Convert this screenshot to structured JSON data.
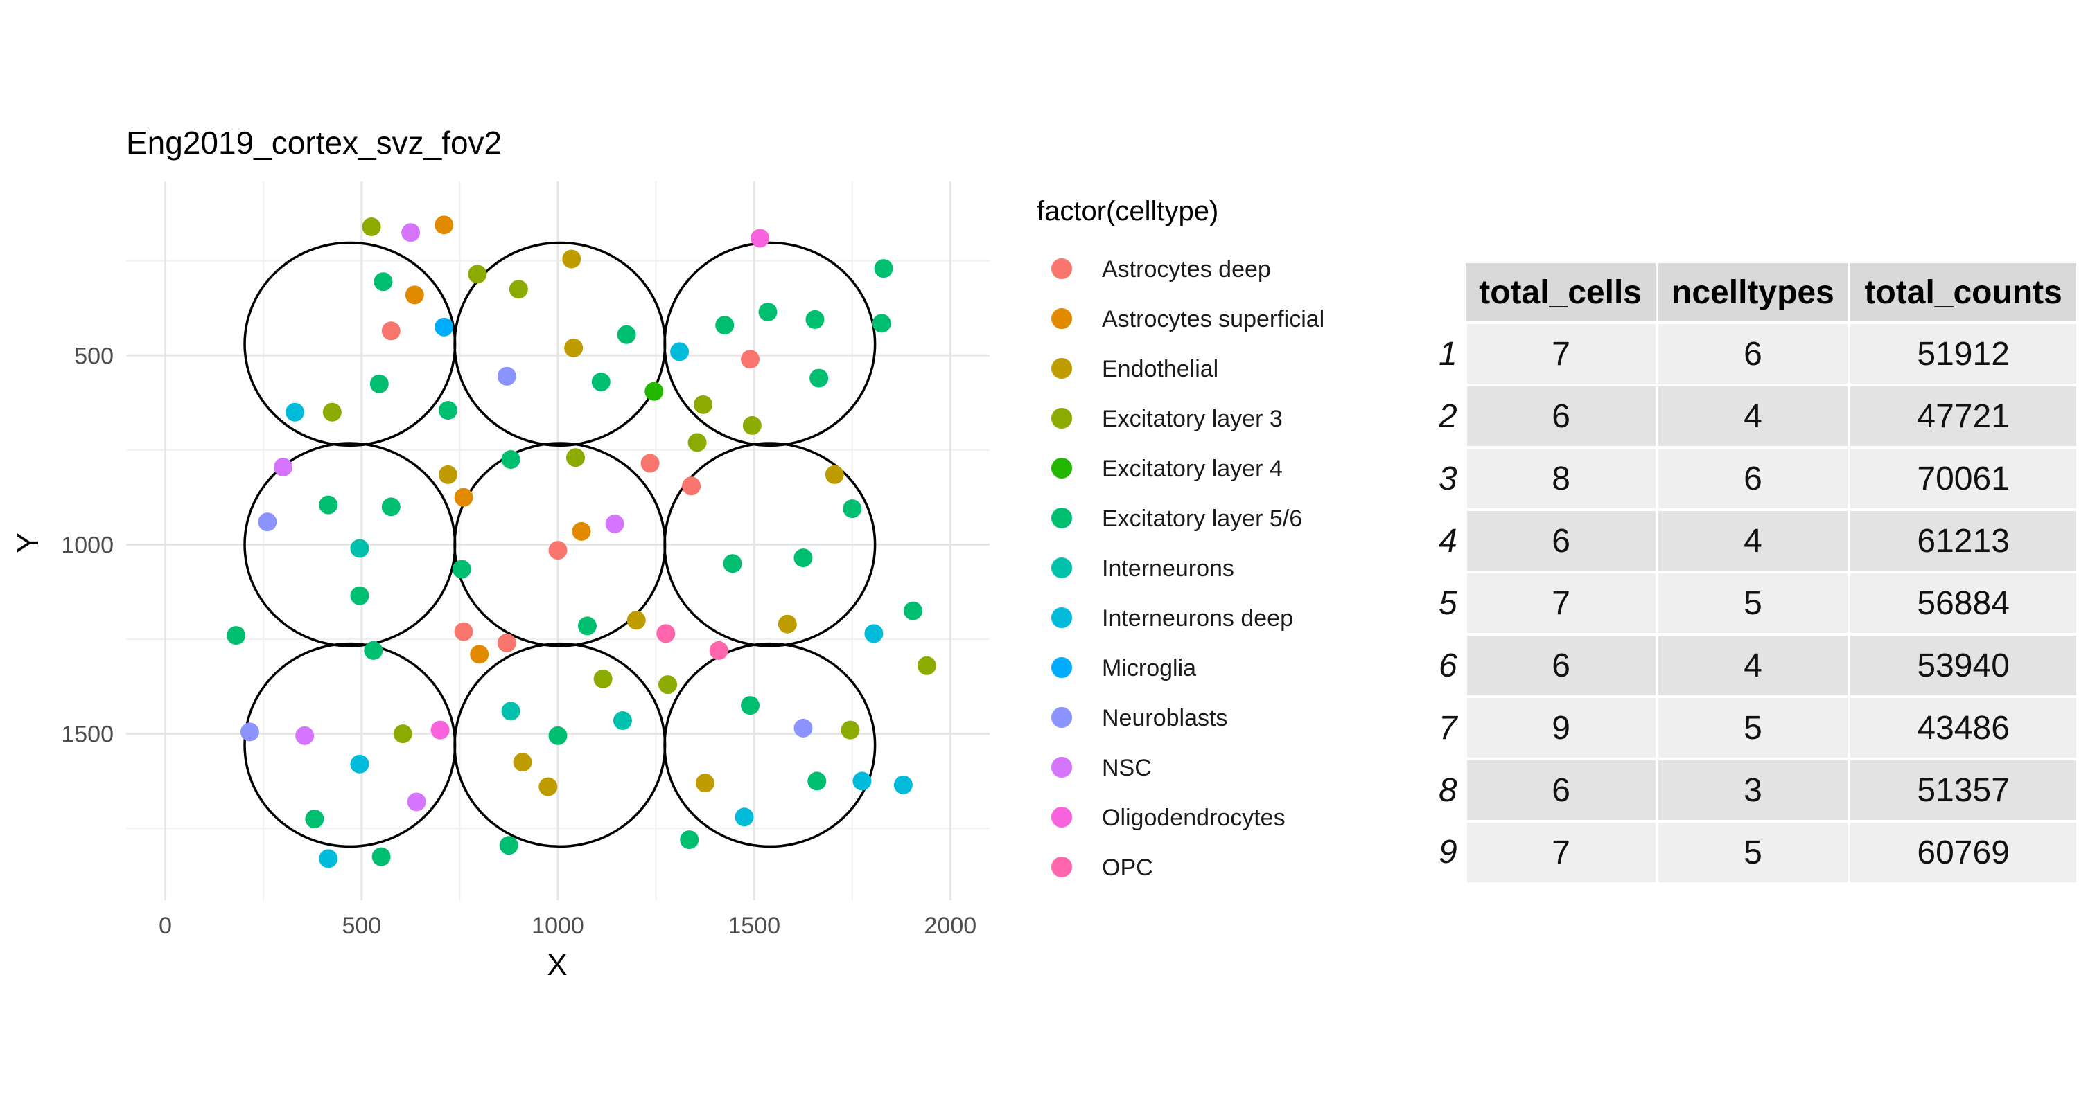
{
  "chart_data": {
    "type": "scatter",
    "title": "Eng2019_cortex_svz_fov2",
    "xlabel": "X",
    "ylabel": "Y",
    "xlim": [
      -100,
      2100
    ],
    "ylim": [
      1940,
      40
    ],
    "y_reversed": true,
    "x_ticks": [
      0,
      500,
      1000,
      1500,
      2000
    ],
    "y_ticks": [
      500,
      1000,
      1500
    ],
    "grid": true,
    "legend_title": "factor(celltype)",
    "legend_position": "right",
    "categories": [
      {
        "name": "Astrocytes deep",
        "color": "#F8766D"
      },
      {
        "name": "Astrocytes superficial",
        "color": "#E18A00"
      },
      {
        "name": "Endothelial",
        "color": "#BE9C00"
      },
      {
        "name": "Excitatory layer 3",
        "color": "#8CAB00"
      },
      {
        "name": "Excitatory layer 4",
        "color": "#24B700"
      },
      {
        "name": "Excitatory layer 5/6",
        "color": "#00BE70"
      },
      {
        "name": "Interneurons",
        "color": "#00C1AB"
      },
      {
        "name": "Interneurons deep",
        "color": "#00BBDA"
      },
      {
        "name": "Microglia",
        "color": "#00ACFC"
      },
      {
        "name": "Neuroblasts",
        "color": "#8B93FF"
      },
      {
        "name": "NSC",
        "color": "#D575FE"
      },
      {
        "name": "Oligodendrocytes",
        "color": "#F962DD"
      },
      {
        "name": "OPC",
        "color": "#FF65AC"
      }
    ],
    "circles": [
      {
        "cx": 470,
        "cy": 470,
        "r": 268
      },
      {
        "cx": 1005,
        "cy": 470,
        "r": 268
      },
      {
        "cx": 1540,
        "cy": 470,
        "r": 268
      },
      {
        "cx": 470,
        "cy": 1000,
        "r": 268
      },
      {
        "cx": 1005,
        "cy": 1000,
        "r": 268
      },
      {
        "cx": 1540,
        "cy": 1000,
        "r": 268
      },
      {
        "cx": 470,
        "cy": 1530,
        "r": 268
      },
      {
        "cx": 1005,
        "cy": 1530,
        "r": 268
      },
      {
        "cx": 1540,
        "cy": 1530,
        "r": 268
      }
    ],
    "points": [
      {
        "x": 525,
        "y": 160,
        "type": "Excitatory layer 3"
      },
      {
        "x": 625,
        "y": 175,
        "type": "NSC"
      },
      {
        "x": 710,
        "y": 155,
        "type": "Astrocytes superficial"
      },
      {
        "x": 555,
        "y": 305,
        "type": "Excitatory layer 5/6"
      },
      {
        "x": 635,
        "y": 340,
        "type": "Astrocytes superficial"
      },
      {
        "x": 575,
        "y": 435,
        "type": "Astrocytes deep"
      },
      {
        "x": 710,
        "y": 425,
        "type": "Microglia"
      },
      {
        "x": 545,
        "y": 575,
        "type": "Excitatory layer 5/6"
      },
      {
        "x": 330,
        "y": 650,
        "type": "Interneurons deep"
      },
      {
        "x": 425,
        "y": 650,
        "type": "Excitatory layer 3"
      },
      {
        "x": 720,
        "y": 645,
        "type": "Excitatory layer 5/6"
      },
      {
        "x": 795,
        "y": 285,
        "type": "Excitatory layer 3"
      },
      {
        "x": 900,
        "y": 325,
        "type": "Excitatory layer 3"
      },
      {
        "x": 1035,
        "y": 245,
        "type": "Endothelial"
      },
      {
        "x": 1175,
        "y": 445,
        "type": "Excitatory layer 5/6"
      },
      {
        "x": 1040,
        "y": 480,
        "type": "Endothelial"
      },
      {
        "x": 870,
        "y": 555,
        "type": "Neuroblasts"
      },
      {
        "x": 1110,
        "y": 570,
        "type": "Excitatory layer 5/6"
      },
      {
        "x": 1245,
        "y": 595,
        "type": "Excitatory layer 4"
      },
      {
        "x": 1515,
        "y": 190,
        "type": "Oligodendrocytes"
      },
      {
        "x": 1830,
        "y": 270,
        "type": "Excitatory layer 5/6"
      },
      {
        "x": 1535,
        "y": 385,
        "type": "Excitatory layer 5/6"
      },
      {
        "x": 1655,
        "y": 405,
        "type": "Excitatory layer 5/6"
      },
      {
        "x": 1425,
        "y": 420,
        "type": "Excitatory layer 5/6"
      },
      {
        "x": 1825,
        "y": 415,
        "type": "Excitatory layer 5/6"
      },
      {
        "x": 1310,
        "y": 490,
        "type": "Interneurons deep"
      },
      {
        "x": 1490,
        "y": 510,
        "type": "Astrocytes deep"
      },
      {
        "x": 1665,
        "y": 560,
        "type": "Excitatory layer 5/6"
      },
      {
        "x": 1370,
        "y": 630,
        "type": "Excitatory layer 3"
      },
      {
        "x": 1495,
        "y": 685,
        "type": "Excitatory layer 3"
      },
      {
        "x": 1355,
        "y": 730,
        "type": "Excitatory layer 3"
      },
      {
        "x": 300,
        "y": 795,
        "type": "NSC"
      },
      {
        "x": 720,
        "y": 815,
        "type": "Endothelial"
      },
      {
        "x": 880,
        "y": 775,
        "type": "Excitatory layer 5/6"
      },
      {
        "x": 1045,
        "y": 770,
        "type": "Excitatory layer 3"
      },
      {
        "x": 1235,
        "y": 785,
        "type": "Astrocytes deep"
      },
      {
        "x": 1340,
        "y": 845,
        "type": "Astrocytes deep"
      },
      {
        "x": 1705,
        "y": 815,
        "type": "Endothelial"
      },
      {
        "x": 415,
        "y": 895,
        "type": "Excitatory layer 5/6"
      },
      {
        "x": 575,
        "y": 900,
        "type": "Excitatory layer 5/6"
      },
      {
        "x": 760,
        "y": 875,
        "type": "Astrocytes superficial"
      },
      {
        "x": 260,
        "y": 940,
        "type": "Neuroblasts"
      },
      {
        "x": 1060,
        "y": 965,
        "type": "Astrocytes superficial"
      },
      {
        "x": 1145,
        "y": 945,
        "type": "NSC"
      },
      {
        "x": 1750,
        "y": 905,
        "type": "Excitatory layer 5/6"
      },
      {
        "x": 495,
        "y": 1010,
        "type": "Interneurons"
      },
      {
        "x": 1000,
        "y": 1015,
        "type": "Astrocytes deep"
      },
      {
        "x": 755,
        "y": 1065,
        "type": "Excitatory layer 5/6"
      },
      {
        "x": 1445,
        "y": 1050,
        "type": "Excitatory layer 5/6"
      },
      {
        "x": 1625,
        "y": 1035,
        "type": "Excitatory layer 5/6"
      },
      {
        "x": 495,
        "y": 1135,
        "type": "Excitatory layer 5/6"
      },
      {
        "x": 180,
        "y": 1240,
        "type": "Excitatory layer 5/6"
      },
      {
        "x": 530,
        "y": 1280,
        "type": "Excitatory layer 5/6"
      },
      {
        "x": 760,
        "y": 1230,
        "type": "Astrocytes deep"
      },
      {
        "x": 870,
        "y": 1260,
        "type": "Astrocytes deep"
      },
      {
        "x": 800,
        "y": 1290,
        "type": "Astrocytes superficial"
      },
      {
        "x": 1075,
        "y": 1215,
        "type": "Excitatory layer 5/6"
      },
      {
        "x": 1200,
        "y": 1200,
        "type": "Endothelial"
      },
      {
        "x": 1275,
        "y": 1235,
        "type": "OPC"
      },
      {
        "x": 1410,
        "y": 1280,
        "type": "OPC"
      },
      {
        "x": 1585,
        "y": 1210,
        "type": "Endothelial"
      },
      {
        "x": 1805,
        "y": 1235,
        "type": "Interneurons deep"
      },
      {
        "x": 1905,
        "y": 1175,
        "type": "Excitatory layer 5/6"
      },
      {
        "x": 1940,
        "y": 1320,
        "type": "Excitatory layer 3"
      },
      {
        "x": 1115,
        "y": 1355,
        "type": "Excitatory layer 3"
      },
      {
        "x": 1280,
        "y": 1370,
        "type": "Excitatory layer 3"
      },
      {
        "x": 880,
        "y": 1440,
        "type": "Interneurons"
      },
      {
        "x": 1165,
        "y": 1465,
        "type": "Interneurons"
      },
      {
        "x": 1490,
        "y": 1425,
        "type": "Excitatory layer 5/6"
      },
      {
        "x": 215,
        "y": 1495,
        "type": "Neuroblasts"
      },
      {
        "x": 355,
        "y": 1505,
        "type": "NSC"
      },
      {
        "x": 605,
        "y": 1500,
        "type": "Excitatory layer 3"
      },
      {
        "x": 700,
        "y": 1490,
        "type": "Oligodendrocytes"
      },
      {
        "x": 1000,
        "y": 1505,
        "type": "Excitatory layer 5/6"
      },
      {
        "x": 1625,
        "y": 1485,
        "type": "Neuroblasts"
      },
      {
        "x": 1745,
        "y": 1490,
        "type": "Excitatory layer 3"
      },
      {
        "x": 495,
        "y": 1580,
        "type": "Interneurons deep"
      },
      {
        "x": 910,
        "y": 1575,
        "type": "Endothelial"
      },
      {
        "x": 975,
        "y": 1640,
        "type": "Endothelial"
      },
      {
        "x": 1375,
        "y": 1630,
        "type": "Endothelial"
      },
      {
        "x": 1660,
        "y": 1625,
        "type": "Excitatory layer 5/6"
      },
      {
        "x": 1775,
        "y": 1625,
        "type": "Interneurons deep"
      },
      {
        "x": 1880,
        "y": 1635,
        "type": "Interneurons deep"
      },
      {
        "x": 640,
        "y": 1680,
        "type": "NSC"
      },
      {
        "x": 380,
        "y": 1725,
        "type": "Excitatory layer 5/6"
      },
      {
        "x": 1475,
        "y": 1720,
        "type": "Interneurons deep"
      },
      {
        "x": 1335,
        "y": 1780,
        "type": "Excitatory layer 5/6"
      },
      {
        "x": 875,
        "y": 1795,
        "type": "Excitatory layer 5/6"
      },
      {
        "x": 415,
        "y": 1830,
        "type": "Interneurons deep"
      },
      {
        "x": 550,
        "y": 1825,
        "type": "Excitatory layer 5/6"
      }
    ]
  },
  "table": {
    "columns": [
      "total_cells",
      "ncelltypes",
      "total_counts"
    ],
    "rows": [
      {
        "rowname": "1",
        "total_cells": "7",
        "ncelltypes": "6",
        "total_counts": "51912"
      },
      {
        "rowname": "2",
        "total_cells": "6",
        "ncelltypes": "4",
        "total_counts": "47721"
      },
      {
        "rowname": "3",
        "total_cells": "8",
        "ncelltypes": "6",
        "total_counts": "70061"
      },
      {
        "rowname": "4",
        "total_cells": "6",
        "ncelltypes": "4",
        "total_counts": "61213"
      },
      {
        "rowname": "5",
        "total_cells": "7",
        "ncelltypes": "5",
        "total_counts": "56884"
      },
      {
        "rowname": "6",
        "total_cells": "6",
        "ncelltypes": "4",
        "total_counts": "53940"
      },
      {
        "rowname": "7",
        "total_cells": "9",
        "ncelltypes": "5",
        "total_counts": "43486"
      },
      {
        "rowname": "8",
        "total_cells": "6",
        "ncelltypes": "3",
        "total_counts": "51357"
      },
      {
        "rowname": "9",
        "total_cells": "7",
        "ncelltypes": "5",
        "total_counts": "60769"
      }
    ]
  }
}
